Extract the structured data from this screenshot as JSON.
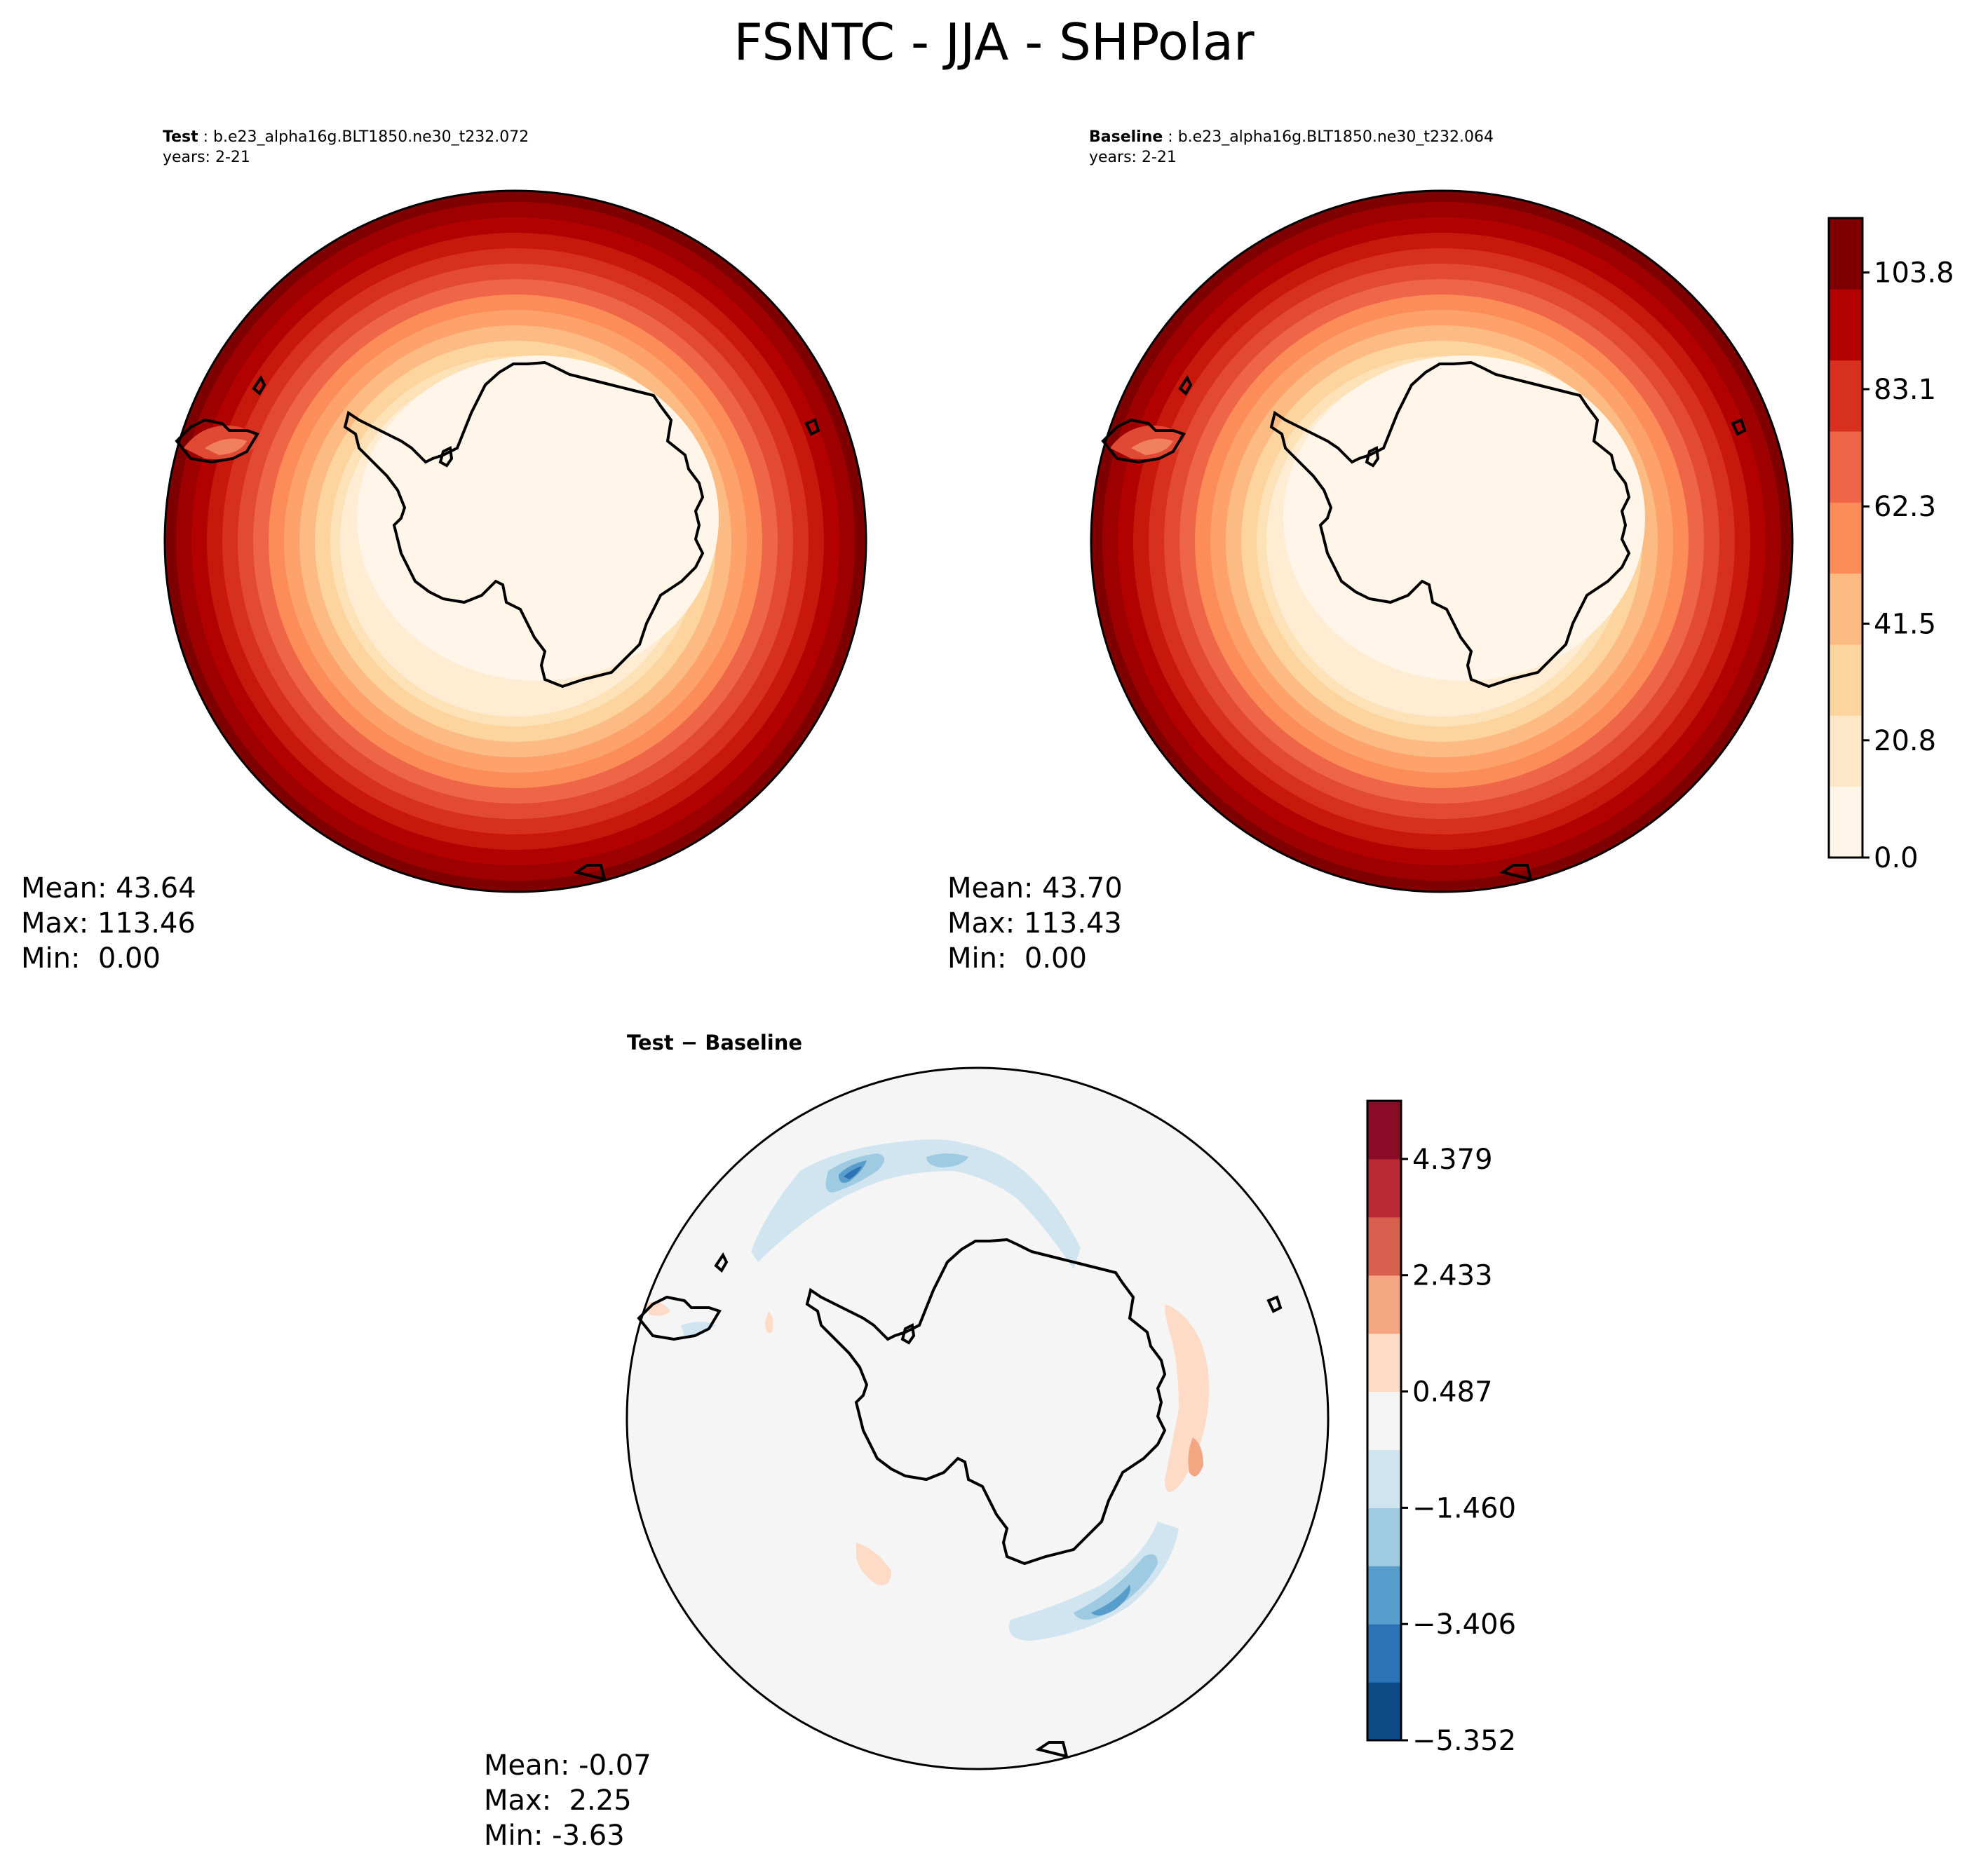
{
  "title": "FSNTC - JJA - SHPolar",
  "panels": {
    "test": {
      "label": "Test",
      "case": "b.e23_alpha16g.BLT1850.ne30_t232.072",
      "years": "years: 2-21",
      "mean": "Mean: 43.64",
      "max": "Max: 113.46",
      "min": "Min:  0.00"
    },
    "baseline": {
      "label": "Baseline",
      "case": "b.e23_alpha16g.BLT1850.ne30_t232.064",
      "years": "years: 2-21",
      "mean": "Mean: 43.70",
      "max": "Max: 113.43",
      "min": "Min:  0.00"
    },
    "diff": {
      "title": "Test − Baseline",
      "mean": "Mean: -0.07",
      "max": "Max:  2.25",
      "min": "Min: -3.63"
    }
  },
  "colorbars": {
    "main": {
      "colors": [
        "#fff5e8",
        "#fee7c8",
        "#fdd49e",
        "#fdbb84",
        "#fc8d59",
        "#ef6548",
        "#d7301f",
        "#b30000",
        "#7f0000"
      ],
      "tick_values": [
        0,
        20.8,
        41.5,
        62.3,
        83.1,
        103.8
      ],
      "tick_labels": [
        "0.0",
        "20.8",
        "41.5",
        "62.3",
        "83.1",
        "103.8"
      ],
      "range": [
        0,
        113.46
      ],
      "levels": 11
    },
    "diff": {
      "colors": [
        "#0e4b87",
        "#2c73b5",
        "#579ecd",
        "#9ecae2",
        "#d1e5f0",
        "#f5f5f5",
        "#fddbc7",
        "#f4a582",
        "#d6604d",
        "#b92a34",
        "#8a0b26"
      ],
      "tick_values": [
        -5.352,
        -3.406,
        -1.46,
        0.487,
        2.433,
        4.379
      ],
      "tick_labels": [
        "−5.352",
        "−3.406",
        "−1.460",
        "0.487",
        "2.433",
        "4.379"
      ],
      "range": [
        -5.352,
        5.352
      ]
    }
  }
}
